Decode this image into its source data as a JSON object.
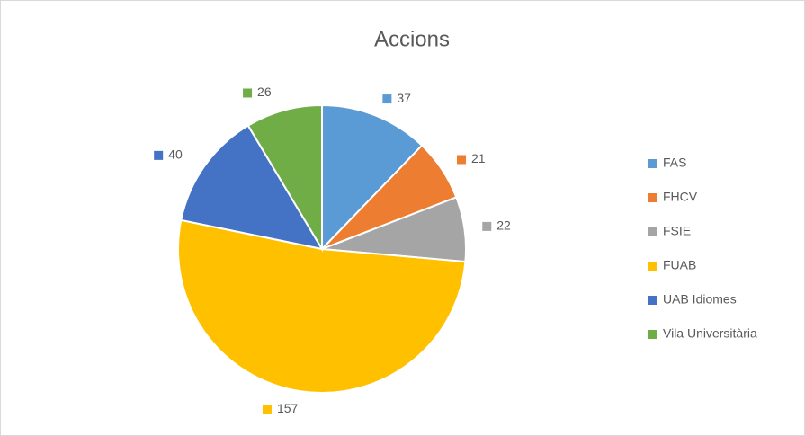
{
  "chart_data": {
    "type": "pie",
    "title": "Accions",
    "categories": [
      "FAS",
      "FHCV",
      "FSIE",
      "FUAB",
      "UAB Idiomes",
      "Vila Universitària"
    ],
    "values": [
      37,
      21,
      22,
      157,
      40,
      26
    ],
    "colors": [
      "#5b9bd5",
      "#ed7d31",
      "#a5a5a5",
      "#ffc000",
      "#4472c4",
      "#70ad47"
    ],
    "legend": "right"
  }
}
